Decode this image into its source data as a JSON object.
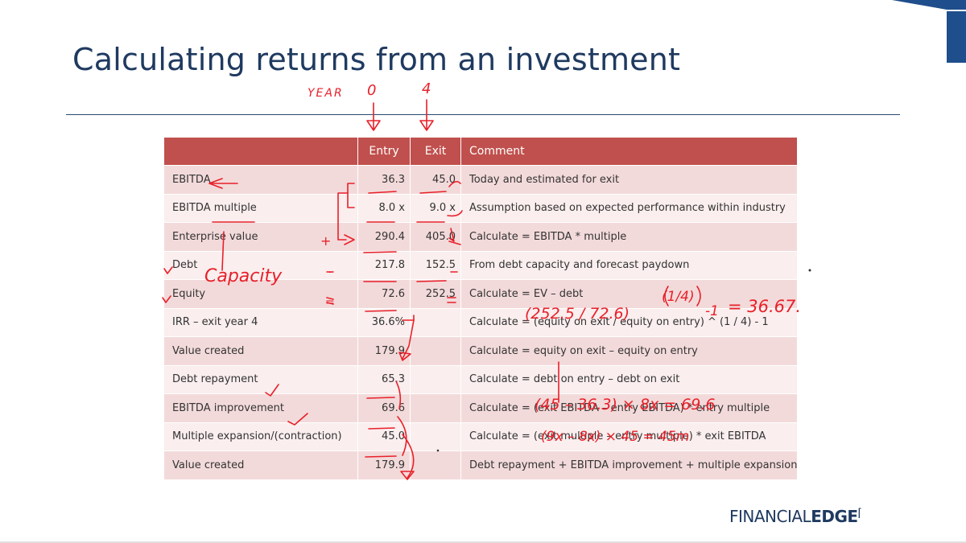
{
  "slide": {
    "title": "Calculating returns from an investment"
  },
  "table": {
    "headers": {
      "label": "",
      "entry": "Entry",
      "exit": "Exit",
      "comment": "Comment"
    },
    "rows": [
      {
        "label": "EBITDA",
        "entry": "36.3",
        "exit": "45.0",
        "comment": "Today and estimated for exit"
      },
      {
        "label": "EBITDA multiple",
        "entry": "8.0 x",
        "exit": "9.0 x",
        "comment": "Assumption based on expected performance within industry"
      },
      {
        "label": "Enterprise value",
        "entry": "290.4",
        "exit": "405.0",
        "comment": "Calculate  = EBITDA * multiple"
      },
      {
        "label": "Debt",
        "entry": "217.8",
        "exit": "152.5",
        "comment": "From debt capacity and forecast paydown"
      },
      {
        "label": "Equity",
        "entry": "72.6",
        "exit": "252.5",
        "comment": "Calculate = EV – debt"
      },
      {
        "label": "IRR – exit year 4",
        "entry": "36.6%",
        "exit": "",
        "comment": "Calculate = (equity on exit / equity on entry) ^ (1 / 4) - 1"
      },
      {
        "label": "Value created",
        "entry": "179.9",
        "exit": "",
        "comment": "Calculate = equity on exit – equity on entry"
      },
      {
        "label": "Debt repayment",
        "entry": "65.3",
        "exit": "",
        "comment": "Calculate = debt on entry – debt on exit"
      },
      {
        "label": "EBITDA improvement",
        "entry": "69.6",
        "exit": "",
        "comment": "Calculate = (exit EBITDA – entry EBITDA) * entry multiple"
      },
      {
        "label": "Multiple expansion/(contraction)",
        "entry": "45.0",
        "exit": "",
        "comment": "Calculate = (exit multiple – entry multiple) * exit EBITDA"
      },
      {
        "label": "Value created",
        "entry": "179.9",
        "exit": "",
        "comment": "Debt repayment + EBITDA improvement + multiple expansion"
      }
    ]
  },
  "handwriting": {
    "year_label": "YEAR",
    "year_entry": "0",
    "year_exit": "4",
    "capacity": "Capacity",
    "plus_sign": "+",
    "minus_sign": "-",
    "equals_sign": "=",
    "irr_fraction": "(252.5 / 72.6)",
    "irr_power": "(1/4)",
    "irr_minus": "-1",
    "irr_result": "= 36.67.",
    "ebitda_calc": "(45 – 36.3) × 8x = 69.6",
    "multiple_calc": "(9x – 8x) × 45 = 45m"
  },
  "logo": {
    "light": "FINANCIAL",
    "bold": "EDGE"
  },
  "colors": {
    "title": "#1f3a60",
    "header_bg": "#c0504d",
    "row_odd": "#f3dada",
    "row_even": "#faeeee",
    "ink": "#e8202a",
    "corner": "#1f4e8c"
  }
}
